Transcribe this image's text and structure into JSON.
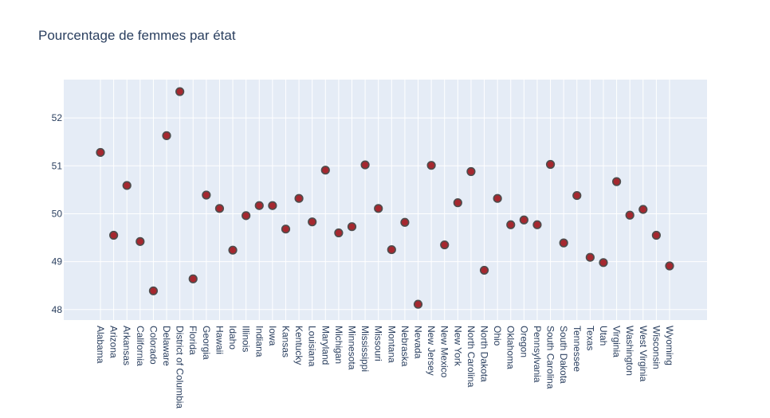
{
  "chart_data": {
    "type": "scatter",
    "title": "Pourcentage de femmes par état",
    "xlabel": "",
    "ylabel": "",
    "ylim": [
      47.78,
      52.8
    ],
    "yticks": [
      48,
      49,
      50,
      51,
      52
    ],
    "grid": true,
    "marker_color": "#a5282f",
    "marker_edge_color": "#4d4d4d",
    "plot_bg": "#e5ecf6",
    "categories": [
      "Alabama",
      "Arizona",
      "Arkansas",
      "California",
      "Colorado",
      "Delaware",
      "District of Columbia",
      "Florida",
      "Georgia",
      "Hawaii",
      "Idaho",
      "Illinois",
      "Indiana",
      "Iowa",
      "Kansas",
      "Kentucky",
      "Louisiana",
      "Maryland",
      "Michigan",
      "Minnesota",
      "Mississippi",
      "Missouri",
      "Montana",
      "Nebraska",
      "Nevada",
      "New Jersey",
      "New Mexico",
      "New York",
      "North Carolina",
      "North Dakota",
      "Ohio",
      "Oklahoma",
      "Oregon",
      "Pennsylvania",
      "South Carolina",
      "South Dakota",
      "Tennessee",
      "Texas",
      "Utah",
      "Virginia",
      "Washington",
      "West Virginia",
      "Wisconsin",
      "Wyoming"
    ],
    "values": [
      51.28,
      49.55,
      50.59,
      49.42,
      48.39,
      51.63,
      52.55,
      48.64,
      50.39,
      50.11,
      49.24,
      49.96,
      50.17,
      50.17,
      49.68,
      50.32,
      49.83,
      50.91,
      49.6,
      49.73,
      51.02,
      50.11,
      49.25,
      49.82,
      48.11,
      51.01,
      49.35,
      50.23,
      50.88,
      48.82,
      50.32,
      49.77,
      49.87,
      49.77,
      51.03,
      49.39,
      50.38,
      49.09,
      48.98,
      50.67,
      49.97,
      50.09,
      49.55,
      48.91
    ]
  }
}
